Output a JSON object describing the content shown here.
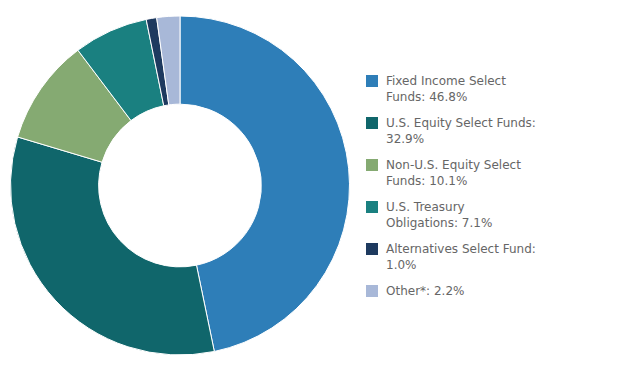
{
  "chart_data": {
    "type": "doughnut",
    "categories": [
      "Fixed Income Select\nFunds: 46.8%",
      "U.S. Equity Select Funds:\n32.9%",
      "Non-U.S. Equity Select\nFunds: 10.1%",
      "U.S. Treasury\nObligations: 7.1%",
      "Alternatives Select Fund:\n1.0%",
      "Other*: 2.2%"
    ],
    "values": [
      46.8,
      32.9,
      10.1,
      7.1,
      1.0,
      2.2
    ],
    "colors": [
      "#2E7EB8",
      "#10666B",
      "#85AA72",
      "#1A8080",
      "#1E3A5F",
      "#A8B8D8"
    ],
    "legend": "right"
  }
}
